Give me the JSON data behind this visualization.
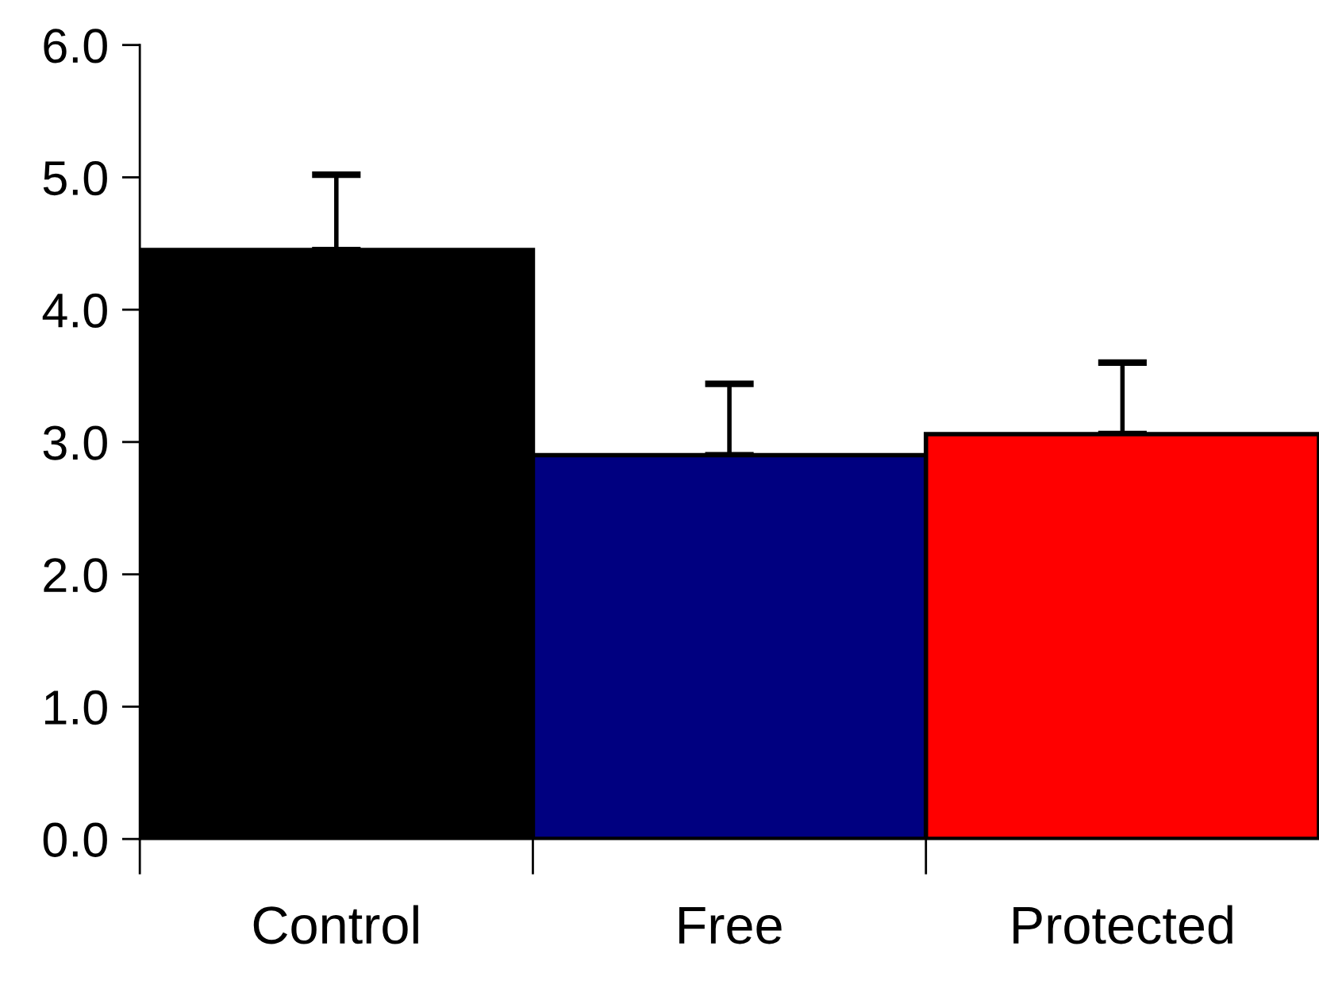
{
  "chart_data": {
    "type": "bar",
    "categories": [
      "Control",
      "Free",
      "Protected"
    ],
    "values": [
      4.45,
      2.9,
      3.06
    ],
    "colors": [
      "#000000",
      "#000080",
      "#ff0000"
    ],
    "errors": [
      [
        4.45,
        5.02
      ],
      [
        2.9,
        3.44
      ],
      [
        3.06,
        3.6
      ]
    ],
    "ylim": [
      0,
      6
    ],
    "yticks": [
      {
        "value": 0,
        "label": "0.0"
      },
      {
        "value": 1,
        "label": "1.0"
      },
      {
        "value": 2,
        "label": "2.0"
      },
      {
        "value": 3,
        "label": "3.0"
      },
      {
        "value": 4,
        "label": "4.0"
      },
      {
        "value": 5,
        "label": "5.0"
      },
      {
        "value": 6,
        "label": "6.0"
      }
    ],
    "grid": false,
    "legend": false
  }
}
